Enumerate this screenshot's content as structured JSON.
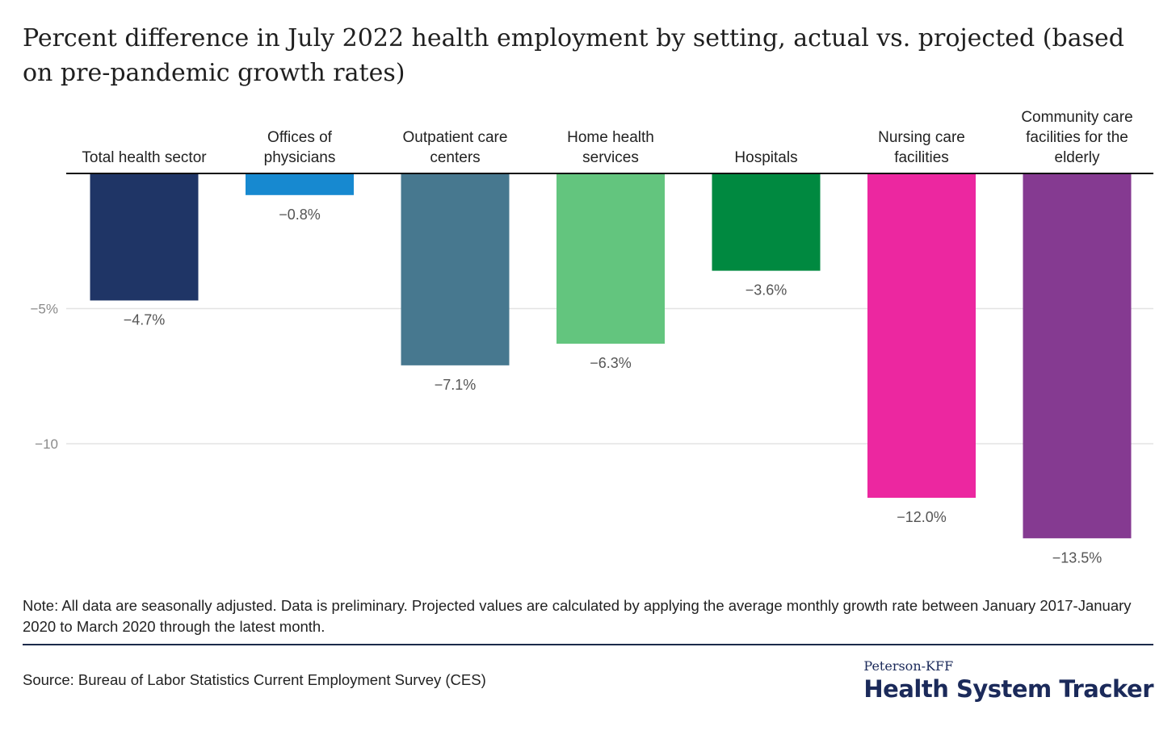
{
  "title": "Percent difference in July 2022 health employment by setting, actual vs. projected (based on pre-pandemic growth rates)",
  "chart_data": {
    "type": "bar",
    "title": "Percent difference in July 2022 health employment by setting, actual vs. projected (based on pre-pandemic growth rates)",
    "xlabel": "",
    "ylabel": "",
    "ylim": [
      -14.5,
      0
    ],
    "yticks": [
      {
        "value": -5,
        "label": "−5%"
      },
      {
        "value": -10,
        "label": "−10"
      }
    ],
    "grid": true,
    "categories": [
      [
        "Total health sector"
      ],
      [
        "Offices of",
        "physicians"
      ],
      [
        "Outpatient care",
        "centers"
      ],
      [
        "Home health",
        "services"
      ],
      [
        "Hospitals"
      ],
      [
        "Nursing care",
        "facilities"
      ],
      [
        "Community care",
        "facilities for the",
        "elderly"
      ]
    ],
    "values": [
      -4.7,
      -0.8,
      -7.1,
      -6.3,
      -3.6,
      -12.0,
      -13.5
    ],
    "value_labels": [
      "−4.7%",
      "−0.8%",
      "−7.1%",
      "−6.3%",
      "−3.6%",
      "−12.0%",
      "−13.5%"
    ],
    "colors": [
      "#1f3566",
      "#1789d0",
      "#47788f",
      "#63c57e",
      "#008940",
      "#ec27a0",
      "#853a91"
    ]
  },
  "note": "Note: All data are seasonally adjusted. Data is preliminary. Projected values are calculated by applying the average monthly growth rate between January 2017-January 2020 to March 2020 through the latest month.",
  "source": "Source: Bureau of Labor Statistics Current Employment Survey (CES)",
  "brand": {
    "top": "Peterson-KFF",
    "main": "Health System Tracker"
  }
}
